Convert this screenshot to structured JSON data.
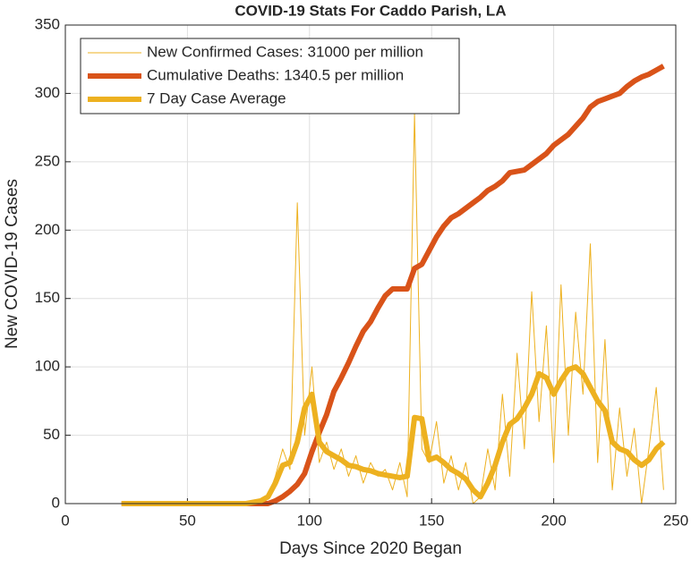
{
  "chart_data": {
    "type": "line",
    "title": "COVID-19 Stats For Caddo Parish, LA",
    "xlabel": "Days Since 2020 Began",
    "ylabel": "New COVID-19 Cases",
    "x": [
      23,
      26,
      29,
      32,
      35,
      38,
      41,
      44,
      47,
      50,
      53,
      56,
      59,
      62,
      65,
      68,
      71,
      74,
      77,
      80,
      83,
      86,
      89,
      92,
      95,
      98,
      101,
      104,
      107,
      110,
      113,
      116,
      119,
      122,
      125,
      128,
      131,
      134,
      137,
      140,
      143,
      146,
      149,
      152,
      155,
      158,
      161,
      164,
      167,
      170,
      173,
      176,
      179,
      182,
      185,
      188,
      191,
      194,
      197,
      200,
      203,
      206,
      209,
      212,
      215,
      218,
      221,
      224,
      227,
      230,
      233,
      236,
      239,
      242,
      245
    ],
    "series": [
      {
        "name": "New Confirmed Cases: 31000 per million",
        "color": "#EDB120",
        "width": 1,
        "values": [
          0,
          0,
          0,
          0,
          0,
          0,
          0,
          0,
          0,
          0,
          0,
          0,
          0,
          0,
          0,
          0,
          0,
          0,
          0,
          0,
          5,
          20,
          40,
          25,
          220,
          50,
          100,
          30,
          45,
          25,
          40,
          20,
          35,
          15,
          30,
          20,
          25,
          10,
          30,
          5,
          285,
          40,
          30,
          60,
          15,
          35,
          10,
          30,
          0,
          5,
          40,
          10,
          80,
          20,
          110,
          40,
          155,
          60,
          130,
          30,
          160,
          50,
          140,
          80,
          190,
          30,
          120,
          10,
          70,
          20,
          55,
          0,
          40,
          85,
          10
        ]
      },
      {
        "name": "Cumulative Deaths: 1340.5 per million",
        "color": "#D95319",
        "width": 6,
        "values": [
          0,
          0,
          0,
          0,
          0,
          0,
          0,
          0,
          0,
          0,
          0,
          0,
          0,
          0,
          0,
          0,
          0,
          0,
          0,
          0,
          0,
          2,
          5,
          9,
          14,
          22,
          38,
          52,
          65,
          82,
          92,
          103,
          115,
          126,
          133,
          143,
          152,
          157,
          157,
          157,
          172,
          175,
          185,
          195,
          203,
          209,
          212,
          216,
          220,
          224,
          229,
          232,
          236,
          242,
          243,
          244,
          248,
          252,
          256,
          262,
          266,
          270,
          276,
          282,
          290,
          294,
          296,
          298,
          300,
          305,
          309,
          312,
          314,
          317,
          320
        ]
      },
      {
        "name": "7 Day Case Average",
        "color": "#EDB120",
        "width": 6,
        "values": [
          0,
          0,
          0,
          0,
          0,
          0,
          0,
          0,
          0,
          0,
          0,
          0,
          0,
          0,
          0,
          0,
          0,
          0,
          1,
          2,
          5,
          15,
          28,
          30,
          45,
          70,
          80,
          45,
          38,
          35,
          32,
          28,
          27,
          25,
          24,
          22,
          21,
          20,
          19,
          20,
          63,
          62,
          32,
          34,
          30,
          25,
          22,
          18,
          10,
          5,
          15,
          28,
          45,
          58,
          62,
          70,
          80,
          95,
          92,
          80,
          90,
          98,
          100,
          95,
          85,
          75,
          68,
          45,
          40,
          38,
          32,
          28,
          32,
          40,
          45
        ]
      }
    ],
    "xlim": [
      0,
      250
    ],
    "xticks": [
      0,
      50,
      100,
      150,
      200,
      250
    ],
    "ylim": [
      0,
      350
    ],
    "yticks": [
      0,
      50,
      100,
      150,
      200,
      250,
      300,
      350
    ],
    "grid": true,
    "legend": "upper left"
  }
}
